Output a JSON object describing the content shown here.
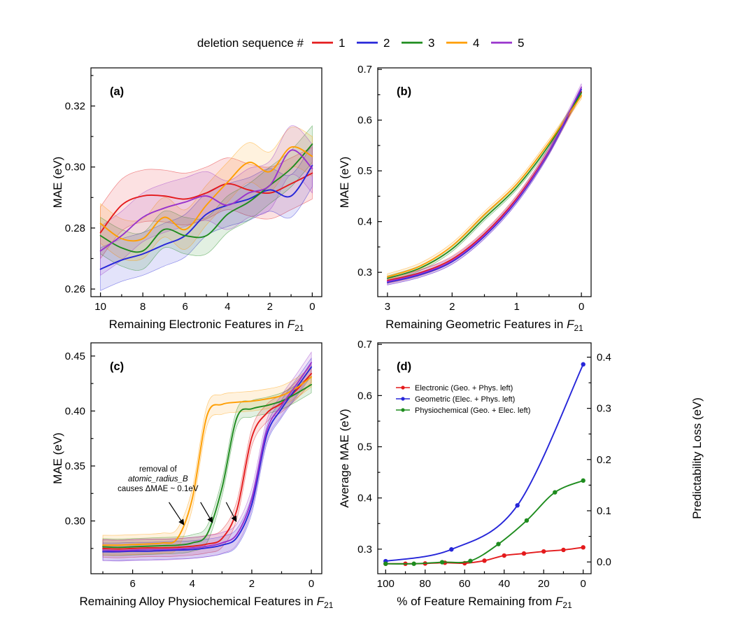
{
  "figure": {
    "background": "#ffffff",
    "top_legend": {
      "title": "deletion sequence #",
      "entries": [
        {
          "label": "1",
          "color": "#e41a1c"
        },
        {
          "label": "2",
          "color": "#2626d9"
        },
        {
          "label": "3",
          "color": "#1e8c1e"
        },
        {
          "label": "4",
          "color": "#ff9e00"
        },
        {
          "label": "5",
          "color": "#9933cc"
        }
      ]
    }
  },
  "chart_data": [
    {
      "id": "a",
      "type": "line",
      "panel_label": "(a)",
      "xlabel_pre": "Remaining Electronic Features in ",
      "xlabel_math": "F",
      "xlabel_sub": "21",
      "ylabel": "MAE (eV)",
      "xlim": [
        10.45,
        -0.45
      ],
      "ylim": [
        0.2575,
        0.3325
      ],
      "xticks": [
        10,
        8,
        6,
        4,
        2,
        0
      ],
      "xtick_labels": [
        "10",
        "8",
        "6",
        "4",
        "2",
        "0"
      ],
      "xminor": [
        9,
        7,
        5,
        3,
        1
      ],
      "yticks": [
        0.26,
        0.28,
        0.3,
        0.32
      ],
      "ytick_labels": [
        "0.26",
        "0.28",
        "0.30",
        "0.32"
      ],
      "yminor": [
        0.27,
        0.29,
        0.31,
        0.33
      ],
      "series": [
        {
          "name": "1",
          "color": "#e41a1c",
          "band": 0.0085,
          "x": [
            10,
            9,
            8,
            7,
            6,
            5,
            4,
            3,
            2,
            1,
            0
          ],
          "y": [
            0.2785,
            0.2875,
            0.2905,
            0.2905,
            0.2895,
            0.2915,
            0.2945,
            0.2925,
            0.2915,
            0.2945,
            0.298
          ]
        },
        {
          "name": "2",
          "color": "#2626d9",
          "band": 0.007,
          "x": [
            10,
            9,
            8,
            7,
            6,
            5,
            4,
            3,
            2,
            1,
            0
          ],
          "y": [
            0.2665,
            0.2695,
            0.2715,
            0.2745,
            0.2775,
            0.2845,
            0.2875,
            0.2895,
            0.2925,
            0.2905,
            0.3005
          ]
        },
        {
          "name": "3",
          "color": "#1e8c1e",
          "band": 0.006,
          "x": [
            10,
            9,
            8,
            7,
            6,
            5,
            4,
            3,
            2,
            1,
            0
          ],
          "y": [
            0.2775,
            0.2735,
            0.2725,
            0.2795,
            0.2775,
            0.2775,
            0.2845,
            0.2885,
            0.294,
            0.2995,
            0.3075
          ]
        },
        {
          "name": "4",
          "color": "#ff9e00",
          "band": 0.0065,
          "x": [
            10,
            9,
            8,
            7,
            6,
            5,
            4,
            3,
            2,
            1,
            0
          ],
          "y": [
            0.2815,
            0.2765,
            0.2765,
            0.2835,
            0.2795,
            0.2875,
            0.295,
            0.3015,
            0.2985,
            0.3065,
            0.3035
          ]
        },
        {
          "name": "5",
          "color": "#9933cc",
          "band": 0.008,
          "x": [
            10,
            9,
            8,
            7,
            6,
            5,
            4,
            3,
            2,
            1,
            0
          ],
          "y": [
            0.2725,
            0.2775,
            0.2835,
            0.2865,
            0.2885,
            0.2905,
            0.2875,
            0.2915,
            0.294,
            0.3055,
            0.2995
          ]
        }
      ]
    },
    {
      "id": "b",
      "type": "line",
      "panel_label": "(b)",
      "xlabel_pre": "Remaining Geometric Features in ",
      "xlabel_math": "F",
      "xlabel_sub": "21",
      "ylabel": "MAE (eV)",
      "xlim": [
        3.15,
        -0.15
      ],
      "ylim": [
        0.252,
        0.703
      ],
      "xticks": [
        3,
        2,
        1,
        0
      ],
      "xtick_labels": [
        "3",
        "2",
        "1",
        "0"
      ],
      "xminor": [
        2.5,
        1.5,
        0.5
      ],
      "yticks": [
        0.3,
        0.4,
        0.5,
        0.6,
        0.7
      ],
      "ytick_labels": [
        "0.3",
        "0.4",
        "0.5",
        "0.6",
        "0.7"
      ],
      "yminor": [
        0.35,
        0.45,
        0.55,
        0.65
      ],
      "series": [
        {
          "name": "1",
          "color": "#e41a1c",
          "band": 0.006,
          "x": [
            3,
            2.5,
            2,
            1.5,
            1,
            0.5,
            0
          ],
          "y": [
            0.284,
            0.299,
            0.326,
            0.376,
            0.446,
            0.54,
            0.656
          ]
        },
        {
          "name": "2",
          "color": "#2626d9",
          "band": 0.005,
          "x": [
            3,
            2.5,
            2,
            1.5,
            1,
            0.5,
            0
          ],
          "y": [
            0.28,
            0.295,
            0.321,
            0.371,
            0.441,
            0.537,
            0.661
          ]
        },
        {
          "name": "3",
          "color": "#1e8c1e",
          "band": 0.005,
          "x": [
            3,
            2.5,
            2,
            1.5,
            1,
            0.5,
            0
          ],
          "y": [
            0.288,
            0.308,
            0.346,
            0.407,
            0.468,
            0.551,
            0.654
          ]
        },
        {
          "name": "4",
          "color": "#ff9e00",
          "band": 0.006,
          "x": [
            3,
            2.5,
            2,
            1.5,
            1,
            0.5,
            0
          ],
          "y": [
            0.291,
            0.312,
            0.352,
            0.414,
            0.474,
            0.556,
            0.648
          ]
        },
        {
          "name": "5",
          "color": "#9933cc",
          "band": 0.007,
          "x": [
            3,
            2.5,
            2,
            1.5,
            1,
            0.5,
            0
          ],
          "y": [
            0.282,
            0.297,
            0.323,
            0.373,
            0.443,
            0.539,
            0.665
          ]
        }
      ]
    },
    {
      "id": "c",
      "type": "line",
      "panel_label": "(c)",
      "xlabel_pre": "Remaining Alloy Physiochemical Features in ",
      "xlabel_math": "F",
      "xlabel_sub": "21",
      "ylabel": "MAE (eV)",
      "xlim": [
        7.4,
        -0.35
      ],
      "ylim": [
        0.252,
        0.462
      ],
      "xticks": [
        6,
        4,
        2,
        0
      ],
      "xtick_labels": [
        "6",
        "4",
        "2",
        "0"
      ],
      "xminor": [
        7,
        5,
        3,
        1
      ],
      "yticks": [
        0.3,
        0.35,
        0.4,
        0.45
      ],
      "ytick_labels": [
        "0.30",
        "0.35",
        "0.40",
        "0.45"
      ],
      "yminor": [
        0.275,
        0.325,
        0.375,
        0.425
      ],
      "annotation": {
        "lines": [
          "removal of",
          "atomic_radius_B",
          "causes ΔMAE ~ 0.1eV"
        ],
        "italic_index": 1,
        "x": 5.15,
        "y": 0.336,
        "arrows": [
          {
            "x1": 4.78,
            "y1": 0.317,
            "x2": 4.28,
            "y2": 0.2965
          },
          {
            "x1": 3.72,
            "y1": 0.317,
            "x2": 3.32,
            "y2": 0.2985
          },
          {
            "x1": 2.86,
            "y1": 0.317,
            "x2": 2.52,
            "y2": 0.2995
          }
        ]
      },
      "series": [
        {
          "name": "1",
          "color": "#e41a1c",
          "band": 0.008,
          "x": [
            7,
            6.5,
            6,
            5.5,
            5,
            4.5,
            4,
            3.5,
            3,
            2.5,
            2,
            1.5,
            1,
            0.5,
            0
          ],
          "y": [
            0.275,
            0.2745,
            0.275,
            0.2755,
            0.2755,
            0.276,
            0.277,
            0.279,
            0.284,
            0.31,
            0.376,
            0.398,
            0.407,
            0.419,
            0.434
          ]
        },
        {
          "name": "2",
          "color": "#2626d9",
          "band": 0.008,
          "x": [
            7,
            6.5,
            6,
            5.5,
            5,
            4.5,
            4,
            3.5,
            3,
            2.5,
            2,
            1.5,
            1,
            0.5,
            0
          ],
          "y": [
            0.272,
            0.272,
            0.2725,
            0.2725,
            0.273,
            0.2735,
            0.274,
            0.2755,
            0.278,
            0.285,
            0.315,
            0.378,
            0.402,
            0.421,
            0.44
          ]
        },
        {
          "name": "3",
          "color": "#1e8c1e",
          "band": 0.0075,
          "x": [
            7,
            6.5,
            6,
            5.5,
            5,
            4.5,
            4,
            3.5,
            3,
            2.5,
            2,
            1.5,
            1,
            0.5,
            0
          ],
          "y": [
            0.2765,
            0.276,
            0.2765,
            0.277,
            0.2775,
            0.278,
            0.28,
            0.288,
            0.33,
            0.394,
            0.402,
            0.405,
            0.409,
            0.416,
            0.424
          ]
        },
        {
          "name": "4",
          "color": "#ff9e00",
          "band": 0.009,
          "x": [
            7,
            6.5,
            6,
            5.5,
            5,
            4.5,
            4,
            3.5,
            3,
            2.5,
            2,
            1.5,
            1,
            0.5,
            0
          ],
          "y": [
            0.278,
            0.278,
            0.2785,
            0.279,
            0.28,
            0.284,
            0.32,
            0.396,
            0.406,
            0.408,
            0.409,
            0.411,
            0.414,
            0.421,
            0.431
          ]
        },
        {
          "name": "5",
          "color": "#9933cc",
          "band": 0.0095,
          "x": [
            7,
            6.5,
            6,
            5.5,
            5,
            4.5,
            4,
            3.5,
            3,
            2.5,
            2,
            1.5,
            1,
            0.5,
            0
          ],
          "y": [
            0.2735,
            0.273,
            0.2735,
            0.274,
            0.274,
            0.2745,
            0.2755,
            0.277,
            0.28,
            0.288,
            0.32,
            0.382,
            0.405,
            0.424,
            0.444
          ]
        }
      ]
    },
    {
      "id": "d",
      "type": "line",
      "panel_label": "(d)",
      "xlabel_pre": "% of Feature Remaining from ",
      "xlabel_math": "F",
      "xlabel_sub": "21",
      "ylabel": "Average MAE (eV)",
      "y2label": "Predictability Loss (eV)",
      "xlim": [
        104,
        -4
      ],
      "ylim": [
        0.252,
        0.703
      ],
      "y2lim": [
        -0.023,
        0.428
      ],
      "xticks": [
        100,
        80,
        60,
        40,
        20,
        0
      ],
      "xtick_labels": [
        "100",
        "80",
        "60",
        "40",
        "20",
        "0"
      ],
      "xminor": [
        90,
        70,
        50,
        30,
        10
      ],
      "yticks": [
        0.3,
        0.4,
        0.5,
        0.6,
        0.7
      ],
      "ytick_labels": [
        "0.3",
        "0.4",
        "0.5",
        "0.6",
        "0.7"
      ],
      "yminor": [
        0.35,
        0.45,
        0.55,
        0.65
      ],
      "y2ticks": [
        0.0,
        0.1,
        0.2,
        0.3,
        0.4
      ],
      "y2tick_labels": [
        "0.0",
        "0.1",
        "0.2",
        "0.3",
        "0.4"
      ],
      "y2minor": [
        0.05,
        0.15,
        0.25,
        0.35
      ],
      "legend_in_plot": true,
      "series": [
        {
          "name": "Electronic (Geo. + Phys. left)",
          "color": "#e41a1c",
          "marker": true,
          "x": [
            100,
            90,
            80,
            70,
            60,
            50,
            40,
            30,
            20,
            10,
            0
          ],
          "y": [
            0.2715,
            0.2715,
            0.272,
            0.2735,
            0.2725,
            0.2775,
            0.2875,
            0.2915,
            0.2955,
            0.2985,
            0.3035
          ]
        },
        {
          "name": "Geometric (Elec. + Phys. left)",
          "color": "#2626d9",
          "marker": true,
          "x": [
            100,
            66.7,
            33.3,
            0
          ],
          "y": [
            0.2765,
            0.2995,
            0.3855,
            0.661
          ]
        },
        {
          "name": "Physiochemical (Geo. + Elec. left)",
          "color": "#1e8c1e",
          "marker": true,
          "x": [
            100,
            85.7,
            71.4,
            57.1,
            42.9,
            28.6,
            14.3,
            0
          ],
          "y": [
            0.2715,
            0.2715,
            0.2745,
            0.277,
            0.31,
            0.356,
            0.411,
            0.434
          ]
        }
      ]
    }
  ]
}
